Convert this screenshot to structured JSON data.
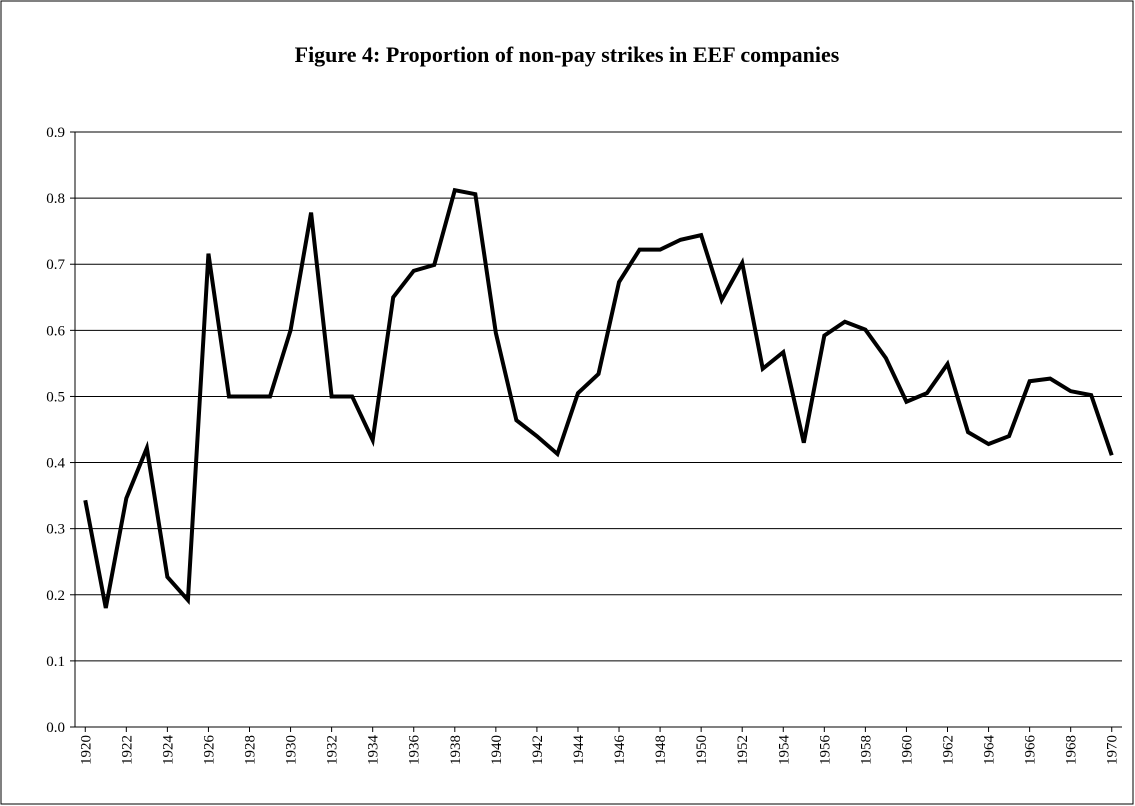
{
  "chart_data": {
    "type": "line",
    "title": "Figure 4: Proportion of non-pay strikes in EEF companies",
    "x": [
      1920,
      1921,
      1922,
      1923,
      1924,
      1925,
      1926,
      1927,
      1928,
      1929,
      1930,
      1931,
      1932,
      1933,
      1934,
      1935,
      1936,
      1937,
      1938,
      1939,
      1940,
      1941,
      1942,
      1943,
      1944,
      1945,
      1946,
      1947,
      1948,
      1949,
      1950,
      1951,
      1952,
      1953,
      1954,
      1955,
      1956,
      1957,
      1958,
      1959,
      1960,
      1961,
      1962,
      1963,
      1964,
      1965,
      1966,
      1967,
      1968,
      1969,
      1970
    ],
    "values": [
      0.343,
      0.18,
      0.346,
      0.422,
      0.227,
      0.192,
      0.716,
      0.5,
      0.5,
      0.5,
      0.6,
      0.778,
      0.5,
      0.5,
      0.434,
      0.65,
      0.69,
      0.699,
      0.812,
      0.806,
      0.596,
      0.464,
      0.44,
      0.413,
      0.505,
      0.534,
      0.673,
      0.722,
      0.722,
      0.737,
      0.744,
      0.646,
      0.702,
      0.542,
      0.567,
      0.43,
      0.592,
      0.613,
      0.601,
      0.558,
      0.492,
      0.505,
      0.549,
      0.446,
      0.428,
      0.44,
      0.523,
      0.527,
      0.508,
      0.502,
      0.411
    ],
    "color": "#000000",
    "xlim": [
      1919.5,
      1970.5
    ],
    "xticks": [
      1920,
      1922,
      1924,
      1926,
      1928,
      1930,
      1932,
      1934,
      1936,
      1938,
      1940,
      1942,
      1944,
      1946,
      1948,
      1950,
      1952,
      1954,
      1956,
      1958,
      1960,
      1962,
      1964,
      1966,
      1968,
      1970
    ],
    "ylim": [
      0,
      0.9
    ],
    "yticks": [
      {
        "value": 0,
        "label": "0.0"
      },
      0.1,
      0.2,
      0.3,
      0.4,
      0.5,
      0.6,
      0.7,
      0.8,
      0.9
    ],
    "grid": true
  }
}
